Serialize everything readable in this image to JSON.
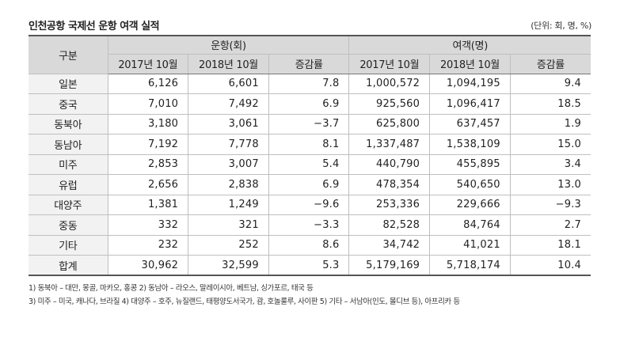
{
  "title": "인천공항 국제선 운항 여객 실적",
  "unit_note": "(단위: 회, 명, %)",
  "table": {
    "header_group": "구분",
    "group_flights": "운항(회)",
    "group_passengers": "여객(명)",
    "col_2017": "2017년 10월",
    "col_2018": "2018년 10월",
    "col_change": "증감률",
    "rows": [
      {
        "region": "일본",
        "f2017": "6,126",
        "f2018": "6,601",
        "fchg": "7.8",
        "p2017": "1,000,572",
        "p2018": "1,094,195",
        "pchg": "9.4"
      },
      {
        "region": "중국",
        "f2017": "7,010",
        "f2018": "7,492",
        "fchg": "6.9",
        "p2017": "925,560",
        "p2018": "1,096,417",
        "pchg": "18.5"
      },
      {
        "region": "동북아",
        "f2017": "3,180",
        "f2018": "3,061",
        "fchg": "−3.7",
        "p2017": "625,800",
        "p2018": "637,457",
        "pchg": "1.9"
      },
      {
        "region": "동남아",
        "f2017": "7,192",
        "f2018": "7,778",
        "fchg": "8.1",
        "p2017": "1,337,487",
        "p2018": "1,538,109",
        "pchg": "15.0"
      },
      {
        "region": "미주",
        "f2017": "2,853",
        "f2018": "3,007",
        "fchg": "5.4",
        "p2017": "440,790",
        "p2018": "455,895",
        "pchg": "3.4"
      },
      {
        "region": "유럽",
        "f2017": "2,656",
        "f2018": "2,838",
        "fchg": "6.9",
        "p2017": "478,354",
        "p2018": "540,650",
        "pchg": "13.0"
      },
      {
        "region": "대양주",
        "f2017": "1,381",
        "f2018": "1,249",
        "fchg": "−9.6",
        "p2017": "253,336",
        "p2018": "229,666",
        "pchg": "−9.3"
      },
      {
        "region": "중동",
        "f2017": "332",
        "f2018": "321",
        "fchg": "−3.3",
        "p2017": "82,528",
        "p2018": "84,764",
        "pchg": "2.7"
      },
      {
        "region": "기타",
        "f2017": "232",
        "f2018": "252",
        "fchg": "8.6",
        "p2017": "34,742",
        "p2018": "41,021",
        "pchg": "18.1"
      }
    ],
    "total": {
      "region": "합계",
      "f2017": "30,962",
      "f2018": "32,599",
      "fchg": "5.3",
      "p2017": "5,179,169",
      "p2018": "5,718,174",
      "pchg": "10.4"
    }
  },
  "footnotes": [
    "1) 동북아 – 대만, 몽골, 마카오, 홍콩 2) 동남아 – 라오스, 말레이시아, 베트남, 싱가포르, 태국 등",
    "3) 미주 – 미국, 캐나다, 브라질 4) 대양주 – 호주, 뉴질랜드, 태평양도서국가, 괌, 호놀룰루, 사이판  5) 기타 – 서남아(인도, 몰디브 등), 아프리카 등"
  ]
}
